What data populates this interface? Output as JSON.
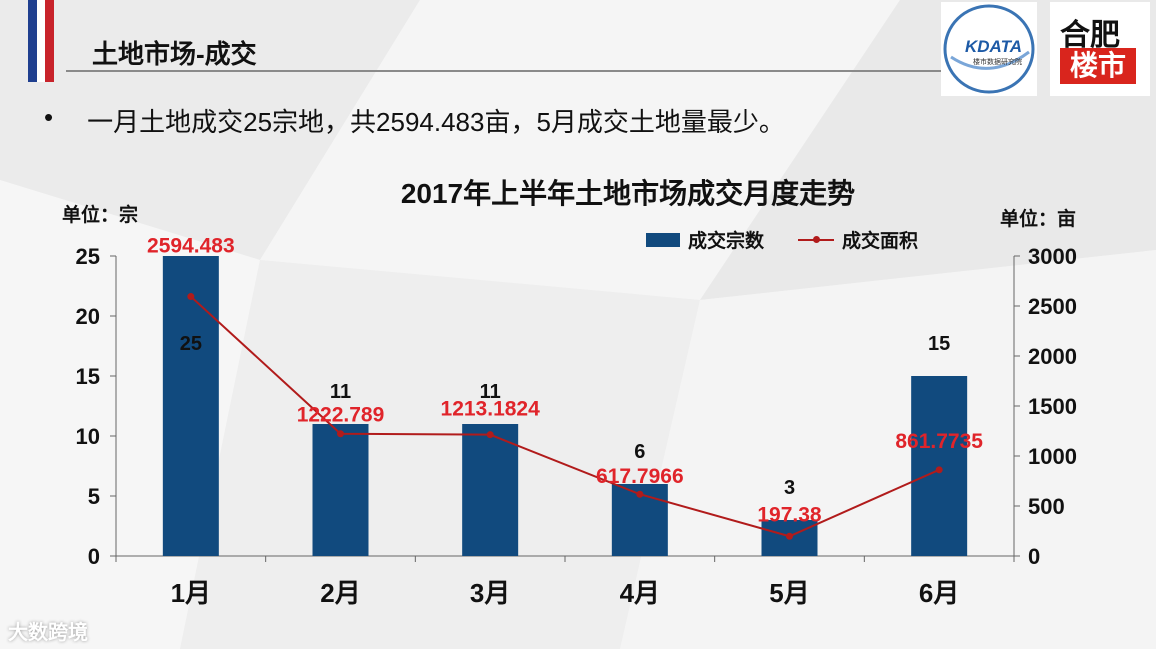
{
  "slide": {
    "title": "土地市场-成交",
    "bullet_mark": "•",
    "bullet_text": "一月土地成交25宗地，共2594.483亩，5月成交土地量最少。",
    "flag_colors": [
      "#1f3f8f",
      "#ffffff",
      "#c8232b"
    ]
  },
  "logos": {
    "kdata": "KDATA",
    "kdata_sub": "楼市数据研究院",
    "hefei_top": "合肥",
    "hefei_bottom": "楼市"
  },
  "watermark": "大数跨境",
  "chart_data": {
    "type": "bar+line",
    "title": "2017年上半年土地市场成交月度走势",
    "left_unit": "单位：宗",
    "right_unit": "单位：亩",
    "categories": [
      "1月",
      "2月",
      "3月",
      "4月",
      "5月",
      "6月"
    ],
    "series": [
      {
        "name": "成交宗数",
        "type": "bar",
        "axis": "left",
        "color": "#114a7e",
        "values": [
          25,
          11,
          11,
          6,
          3,
          15
        ],
        "labels": [
          "25",
          "11",
          "11",
          "6",
          "3",
          "15"
        ]
      },
      {
        "name": "成交面积",
        "type": "line",
        "axis": "right",
        "color": "#b11b1b",
        "values": [
          2594.483,
          1222.789,
          1213.1824,
          617.7966,
          197.38,
          861.7735
        ],
        "labels": [
          "2594.483",
          "1222.789",
          "1213.1824",
          "617.7966",
          "197.38",
          "861.7735"
        ]
      }
    ],
    "left_axis": {
      "min": 0,
      "max": 25,
      "ticks": [
        "0",
        "5",
        "10",
        "15",
        "20",
        "25"
      ]
    },
    "right_axis": {
      "min": 0,
      "max": 3000,
      "ticks": [
        "0",
        "500",
        "1000",
        "1500",
        "2000",
        "2500",
        "3000"
      ]
    },
    "legend_position": "top-right"
  }
}
